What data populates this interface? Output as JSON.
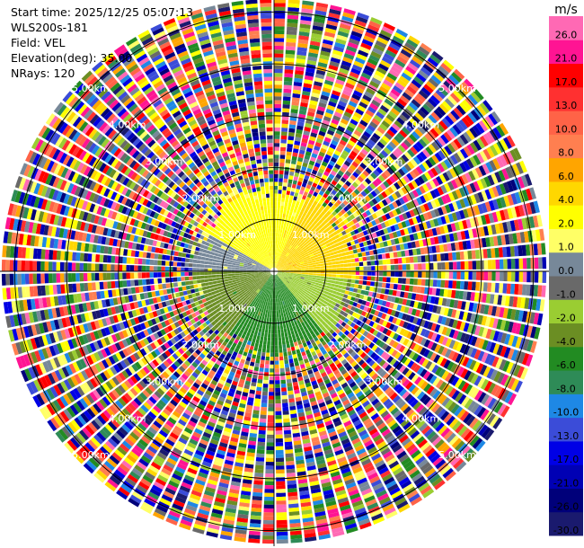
{
  "info": {
    "start_time": "Start time: 2025/12/25 05:07:13",
    "instrument": "WLS200s-181",
    "field": "Field: VEL",
    "elevation": "Elevation(deg): 35.00",
    "nrays": "NRays: 120"
  },
  "chart_data": {
    "type": "ppi-polar",
    "field": "VEL",
    "instrument": "WLS200s-181",
    "elevation_deg": 35.0,
    "nrays": 120,
    "max_range_km": 5.3,
    "range_rings_km": [
      1.0,
      2.0,
      3.0,
      4.0,
      5.0
    ],
    "ring_label_text": [
      "1.00km",
      "2.00km",
      "3.00km",
      "4.00km",
      "5.00km"
    ],
    "ring_label_bearings_deg": [
      45,
      135,
      225,
      315
    ],
    "coherent_region_km": 1.5,
    "coherent_pattern": [
      {
        "from_deg": 300,
        "to_deg": 360,
        "value": 3.0
      },
      {
        "from_deg": 0,
        "to_deg": 25,
        "value": 3.0
      },
      {
        "from_deg": 25,
        "to_deg": 95,
        "value": 4.5
      },
      {
        "from_deg": 95,
        "to_deg": 140,
        "value": -1.5
      },
      {
        "from_deg": 140,
        "to_deg": 215,
        "value": -5.0
      },
      {
        "from_deg": 215,
        "to_deg": 270,
        "value": -2.5
      },
      {
        "from_deg": 270,
        "to_deg": 300,
        "value": 0.5
      }
    ],
    "colorbar": {
      "unit": "m/s",
      "boundaries": [
        -30.0,
        -26.0,
        -21.0,
        -17.0,
        -13.0,
        -10.0,
        -8.0,
        -6.0,
        -4.0,
        -2.0,
        -1.0,
        0.0,
        1.0,
        2.0,
        4.0,
        6.0,
        8.0,
        10.0,
        13.0,
        17.0,
        21.0,
        26.0
      ],
      "tick_labels": [
        "-30.0",
        "-26.0",
        "-21.0",
        "-17.0",
        "-13.0",
        "-10.0",
        "-8.0",
        "-6.0",
        "-4.0",
        "-2.0",
        "-1.0",
        "0.0",
        "1.0",
        "2.0",
        "4.0",
        "6.0",
        "8.0",
        "10.0",
        "13.0",
        "17.0",
        "21.0",
        "26.0"
      ],
      "colors": [
        "#1a1a6e",
        "#00007a",
        "#0000b4",
        "#0000e6",
        "#3b4cd8",
        "#1e88e5",
        "#2e8b57",
        "#228b22",
        "#6b8e23",
        "#9acd32",
        "#696969",
        "#778899",
        "#ffff66",
        "#ffff00",
        "#ffd700",
        "#ffa500",
        "#ff7f50",
        "#ff6347",
        "#ff3030",
        "#ff0000",
        "#ff1493",
        "#ff69b4"
      ]
    }
  }
}
